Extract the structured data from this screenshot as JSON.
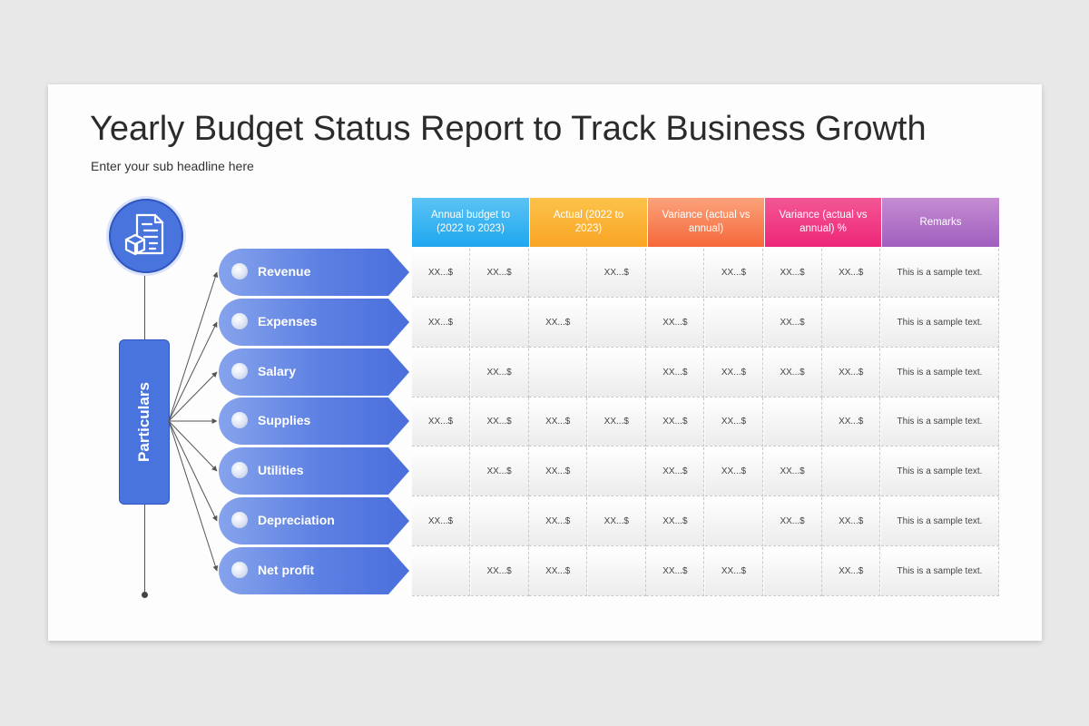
{
  "title": "Yearly Budget Status Report to Track Business Growth",
  "subtitle": "Enter your sub headline here",
  "side_label": "Particulars",
  "icons": {
    "report": "report-document-icon"
  },
  "headers": [
    {
      "label": "Annual budget to (2022 to 2023)",
      "color_from": "#5cc3f4",
      "color_to": "#1ea7ef"
    },
    {
      "label": "Actual (2022 to 2023)",
      "color_from": "#fcc34a",
      "color_to": "#f9a424"
    },
    {
      "label": "Variance (actual vs annual)",
      "color_from": "#fba27a",
      "color_to": "#f5683b"
    },
    {
      "label": "Variance (actual vs annual) %",
      "color_from": "#f35795",
      "color_to": "#ee2678"
    },
    {
      "label": "Remarks",
      "color_from": "#c58cd2",
      "color_to": "#a05fbf"
    }
  ],
  "rows": [
    {
      "label": "Revenue",
      "cells": [
        "XX...$",
        "XX...$",
        "",
        "XX...$",
        "",
        "XX...$",
        "XX...$",
        "XX...$"
      ],
      "remark": "This is a sample text."
    },
    {
      "label": "Expenses",
      "cells": [
        "XX...$",
        "",
        "XX...$",
        "",
        "XX...$",
        "",
        "XX...$",
        ""
      ],
      "remark": "This is a sample text."
    },
    {
      "label": "Salary",
      "cells": [
        "",
        "XX...$",
        "",
        "",
        "XX...$",
        "XX...$",
        "XX...$",
        "XX...$"
      ],
      "remark": "This is a sample text."
    },
    {
      "label": "Supplies",
      "cells": [
        "XX...$",
        "XX...$",
        "XX...$",
        "XX...$",
        "XX...$",
        "XX...$",
        "",
        "XX...$"
      ],
      "remark": "This is a sample text."
    },
    {
      "label": "Utilities",
      "cells": [
        "",
        "XX...$",
        "XX...$",
        "",
        "XX...$",
        "XX...$",
        "XX...$",
        ""
      ],
      "remark": "This is a sample text."
    },
    {
      "label": "Depreciation",
      "cells": [
        "XX...$",
        "",
        "XX...$",
        "XX...$",
        "XX...$",
        "",
        "XX...$",
        "XX...$"
      ],
      "remark": "This is a sample text."
    },
    {
      "label": "Net profit",
      "cells": [
        "",
        "XX...$",
        "XX...$",
        "",
        "XX...$",
        "XX...$",
        "",
        "XX...$"
      ],
      "remark": "This is a sample text."
    }
  ]
}
